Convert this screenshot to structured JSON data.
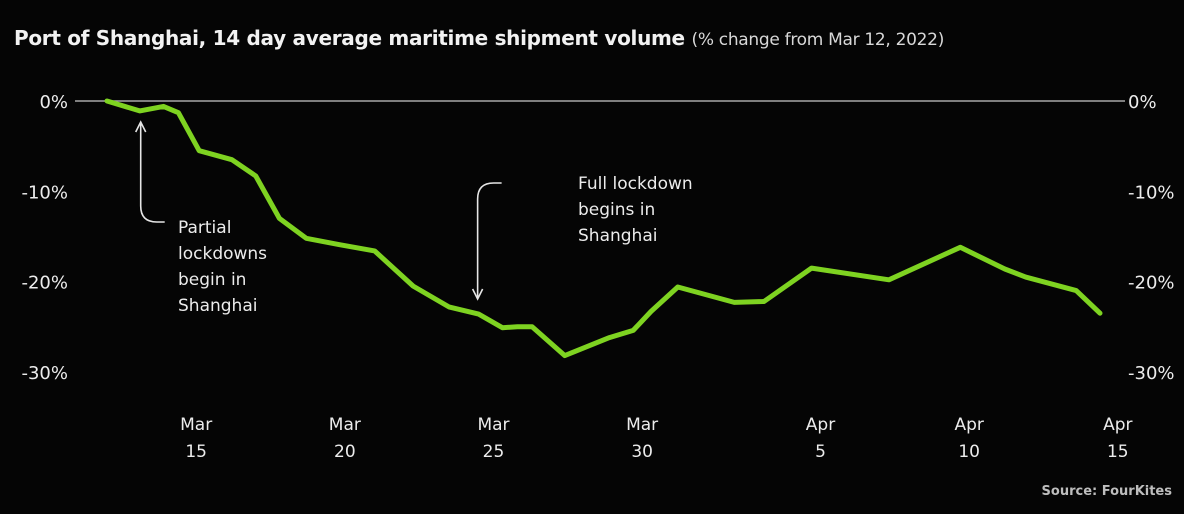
{
  "chart_data": {
    "type": "line",
    "title": "Port of Shanghai, 14 day average maritime shipment volume",
    "subtitle": "(% change from Mar 12, 2022)",
    "source": "Source: FourKites",
    "ylim": [
      -30,
      0
    ],
    "y_ticks": [
      "0%",
      "-10%",
      "-20%",
      "-30%"
    ],
    "x_ticks": [
      {
        "month": "Mar",
        "day": "15",
        "x": 15
      },
      {
        "month": "Mar",
        "day": "20",
        "x": 20
      },
      {
        "month": "Mar",
        "day": "25",
        "x": 25
      },
      {
        "month": "Mar",
        "day": "30",
        "x": 30
      },
      {
        "month": "Apr",
        "day": "5",
        "x": 36
      },
      {
        "month": "Apr",
        "day": "10",
        "x": 41
      },
      {
        "month": "Apr",
        "day": "15",
        "x": 46
      }
    ],
    "series": [
      {
        "name": "",
        "color": "#7ed321",
        "x": [
          12,
          13.1,
          13.9,
          14.4,
          15.1,
          16.2,
          17.0,
          17.8,
          18.7,
          19.8,
          21.0,
          22.3,
          23.5,
          24.5,
          25.3,
          25.8,
          26.3,
          27.4,
          28.9,
          29.7,
          30.3,
          31.2,
          33.1,
          34.1,
          35.7,
          38.3,
          40.7,
          42.2,
          42.9,
          44.6,
          45.4
        ],
        "y": [
          0,
          -1.1,
          -0.6,
          -1.3,
          -5.5,
          -6.5,
          -8.3,
          -13.0,
          -15.2,
          -15.9,
          -16.6,
          -20.5,
          -22.8,
          -23.6,
          -25.1,
          -25.0,
          -25.0,
          -28.2,
          -26.2,
          -25.4,
          -23.3,
          -20.6,
          -22.3,
          -22.2,
          -18.5,
          -19.8,
          -16.2,
          -18.6,
          -19.5,
          -21.0,
          -23.5
        ]
      }
    ],
    "annotations": [
      {
        "x": 13.1,
        "lines": [
          "Partial",
          "lockdowns",
          "begin in",
          "Shanghai"
        ]
      },
      {
        "x": 24.5,
        "lines": [
          "Full lockdown",
          "begins in",
          "Shanghai"
        ]
      }
    ]
  }
}
